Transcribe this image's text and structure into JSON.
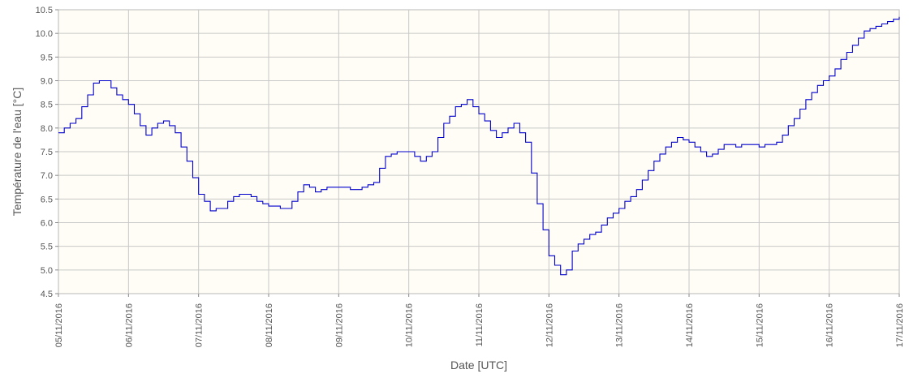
{
  "chart_data": {
    "type": "line",
    "title": "",
    "xlabel": "Date [UTC]",
    "ylabel": "Température de l'eau [°C]",
    "xlim": [
      "05/11/2016",
      "17/11/2016"
    ],
    "ylim": [
      4.5,
      10.5
    ],
    "x_tick_labels": [
      "05/11/2016",
      "06/11/2016",
      "07/11/2016",
      "08/11/2016",
      "09/11/2016",
      "10/11/2016",
      "11/11/2016",
      "12/11/2016",
      "13/11/2016",
      "14/11/2016",
      "15/11/2016",
      "16/11/2016",
      "17/11/2016"
    ],
    "y_ticks": [
      "4.5",
      "5.0",
      "5.5",
      "6.0",
      "6.5",
      "7.0",
      "7.5",
      "8.0",
      "8.5",
      "9.0",
      "9.5",
      "10.0",
      "10.5"
    ],
    "grid": true,
    "line_style": "step",
    "colors": {
      "series": "#0000cc",
      "plot_background": "#fffdf5",
      "grid": "#c8c8c8",
      "axis": "#555555"
    },
    "series": [
      {
        "x": [
          "05/11/2016 00:00",
          "05/11/2016 06:00",
          "05/11/2016 12:00",
          "05/11/2016 16:00",
          "05/11/2016 20:00",
          "06/11/2016 00:00",
          "06/11/2016 06:00",
          "06/11/2016 10:00",
          "06/11/2016 12:00",
          "06/11/2016 16:00",
          "06/11/2016 20:00",
          "07/11/2016 00:00",
          "07/11/2016 04:00",
          "07/11/2016 08:00",
          "07/11/2016 12:00",
          "07/11/2016 16:00",
          "07/11/2016 20:00",
          "08/11/2016 00:00",
          "08/11/2016 06:00",
          "08/11/2016 12:00",
          "08/11/2016 16:00",
          "08/11/2016 20:00",
          "09/11/2016 00:00",
          "09/11/2016 06:00",
          "09/11/2016 12:00",
          "09/11/2016 16:00",
          "09/11/2016 20:00",
          "10/11/2016 00:00",
          "10/11/2016 04:00",
          "10/11/2016 08:00",
          "10/11/2016 12:00",
          "10/11/2016 16:00",
          "10/11/2016 20:00",
          "11/11/2016 00:00",
          "11/11/2016 06:00",
          "11/11/2016 08:00",
          "11/11/2016 12:00",
          "11/11/2016 16:00",
          "11/11/2016 20:00",
          "12/11/2016 00:00",
          "12/11/2016 04:00",
          "12/11/2016 06:00",
          "12/11/2016 08:00",
          "12/11/2016 12:00",
          "12/11/2016 16:00",
          "12/11/2016 20:00",
          "13/11/2016 00:00",
          "13/11/2016 06:00",
          "13/11/2016 12:00",
          "13/11/2016 16:00",
          "13/11/2016 20:00",
          "14/11/2016 00:00",
          "14/11/2016 06:00",
          "14/11/2016 08:00",
          "14/11/2016 12:00",
          "14/11/2016 16:00",
          "14/11/2016 20:00",
          "15/11/2016 00:00",
          "15/11/2016 06:00",
          "15/11/2016 12:00",
          "15/11/2016 16:00",
          "15/11/2016 20:00",
          "16/11/2016 00:00",
          "16/11/2016 06:00",
          "16/11/2016 12:00",
          "16/11/2016 16:00",
          "16/11/2016 20:00",
          "17/11/2016 00:00"
        ],
        "y": [
          7.9,
          8.2,
          8.95,
          9.0,
          8.7,
          8.5,
          7.85,
          8.1,
          8.15,
          7.9,
          7.3,
          6.6,
          6.25,
          6.3,
          6.55,
          6.6,
          6.45,
          6.35,
          6.3,
          6.8,
          6.65,
          6.75,
          6.75,
          6.7,
          6.85,
          7.4,
          7.5,
          7.5,
          7.3,
          7.5,
          8.1,
          8.45,
          8.6,
          8.3,
          7.8,
          7.9,
          8.1,
          7.7,
          6.4,
          5.3,
          4.9,
          5.0,
          5.4,
          5.65,
          5.8,
          6.1,
          6.3,
          6.7,
          7.3,
          7.6,
          7.8,
          7.7,
          7.4,
          7.45,
          7.65,
          7.6,
          7.65,
          7.6,
          7.7,
          8.2,
          8.6,
          8.9,
          9.1,
          9.6,
          10.05,
          10.15,
          10.25,
          10.35
        ]
      }
    ]
  }
}
